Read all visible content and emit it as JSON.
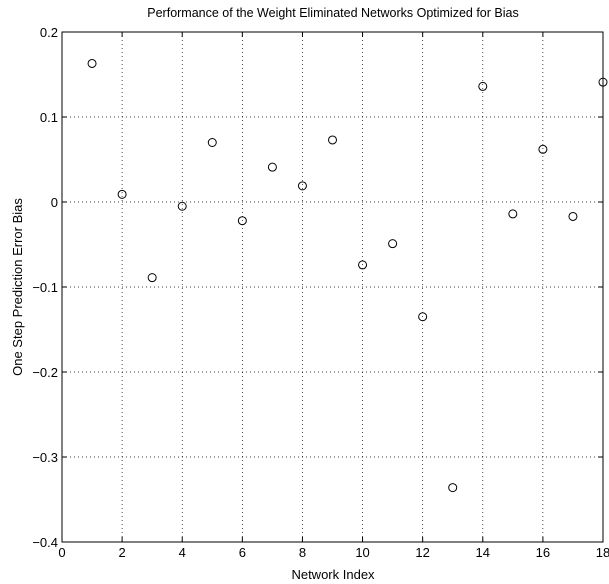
{
  "chart_data": {
    "type": "scatter",
    "title": "Performance of the Weight Eliminated Networks Optimized for Bias",
    "xlabel": "Network Index",
    "ylabel": "One Step Prediction Error Bias",
    "xlim": [
      0,
      18
    ],
    "ylim": [
      -0.4,
      0.2
    ],
    "xticks": [
      0,
      2,
      4,
      6,
      8,
      10,
      12,
      14,
      16,
      18
    ],
    "xtick_labels": [
      "0",
      "2",
      "4",
      "6",
      "8",
      "10",
      "12",
      "14",
      "16",
      "18"
    ],
    "yticks": [
      0.2,
      0.1,
      0,
      -0.1,
      -0.2,
      -0.3,
      -0.4
    ],
    "ytick_labels": [
      "0.2",
      "0.1",
      "0",
      "−0.1",
      "−0.2",
      "−0.3",
      "−0.4"
    ],
    "grid": true,
    "marker": "circle-open",
    "x": [
      1,
      2,
      3,
      4,
      5,
      6,
      7,
      8,
      9,
      10,
      11,
      12,
      13,
      14,
      15,
      16,
      17,
      18
    ],
    "y": [
      0.163,
      0.009,
      -0.089,
      -0.005,
      0.07,
      -0.022,
      0.041,
      0.019,
      0.073,
      -0.074,
      -0.049,
      -0.135,
      -0.336,
      0.136,
      -0.014,
      0.062,
      -0.017,
      0.141
    ]
  }
}
